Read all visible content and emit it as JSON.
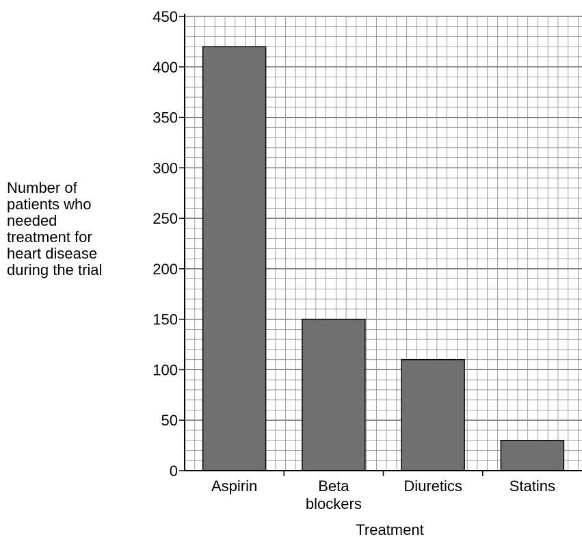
{
  "chart_data": {
    "type": "bar",
    "categories": [
      "Aspirin",
      [
        "Beta",
        "blockers"
      ],
      "Diuretics",
      "Statins"
    ],
    "values": [
      420,
      150,
      110,
      30
    ],
    "title": "",
    "xlabel": "Treatment",
    "ylabel": [
      "Number of",
      "patients who",
      "needed",
      "treatment for",
      "heart disease",
      "during the trial"
    ],
    "ylim": [
      0,
      450
    ],
    "yticks": [
      0,
      50,
      100,
      150,
      200,
      250,
      300,
      350,
      400,
      450
    ],
    "grid": true,
    "bar_color": "#707070"
  }
}
